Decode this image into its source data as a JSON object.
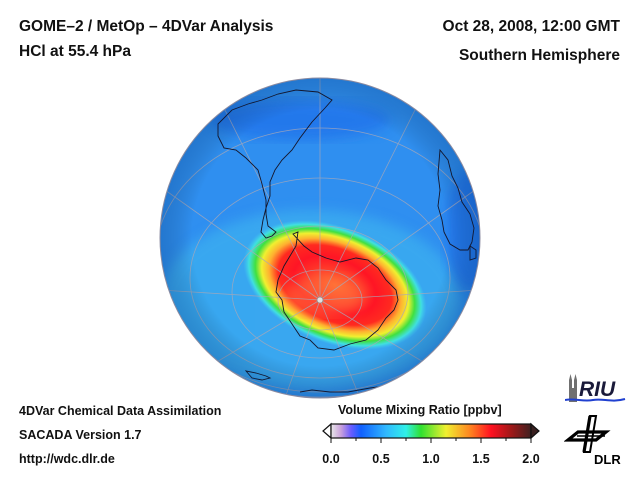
{
  "header": {
    "title_line1": "GOME–2 / MetOp – 4DVar Analysis",
    "title_line2": "HCl at 55.4 hPa",
    "date": "Oct 28, 2008, 12:00 GMT",
    "region": "Southern Hemisphere"
  },
  "footer": {
    "line1": "4DVar Chemical Data Assimilation",
    "line2": "SACADA Version 1.7",
    "line3": "http://wdc.dlr.de"
  },
  "colorbar": {
    "title": "Volume Mixing Ratio [ppbv]",
    "range": [
      0.0,
      2.0
    ],
    "ticks": [
      "0.0",
      "0.5",
      "1.0",
      "1.5",
      "2.0"
    ],
    "extend": "both",
    "stops": [
      {
        "v": 0.0,
        "color": "#e8e8e8"
      },
      {
        "v": 0.1,
        "color": "#c9a0dc"
      },
      {
        "v": 0.2,
        "color": "#6a5cff"
      },
      {
        "v": 0.3,
        "color": "#1060ff"
      },
      {
        "v": 0.55,
        "color": "#30b8ff"
      },
      {
        "v": 0.75,
        "color": "#30f0e8"
      },
      {
        "v": 0.9,
        "color": "#30e030"
      },
      {
        "v": 1.15,
        "color": "#f0f030"
      },
      {
        "v": 1.4,
        "color": "#ff8020"
      },
      {
        "v": 1.6,
        "color": "#ff1020"
      },
      {
        "v": 1.8,
        "color": "#a01818"
      },
      {
        "v": 2.0,
        "color": "#402020"
      }
    ]
  },
  "map": {
    "projection": "orthographic",
    "hemisphere": "south",
    "ocean_color": "#2f8ff0",
    "coast_color": "#1a1a2a",
    "grid_color": "#a0a0b0",
    "pole_marker_color": "#d0d0d0"
  },
  "logos": {
    "riu_text": "RIU",
    "dlr_text": "DLR"
  }
}
